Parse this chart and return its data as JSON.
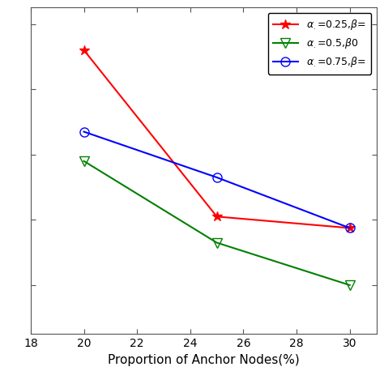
{
  "series": [
    {
      "label": "α.=0.25,β=",
      "color": "red",
      "marker": "*",
      "marker_filled": true,
      "x": [
        20,
        25,
        30
      ],
      "y": [
        0.92,
        0.41,
        0.375
      ]
    },
    {
      "label": "α.=0.5,β0",
      "color": "green",
      "marker": "v",
      "marker_filled": false,
      "x": [
        20,
        25,
        30
      ],
      "y": [
        0.58,
        0.33,
        0.2
      ]
    },
    {
      "label": "α.=0.75,β=",
      "color": "blue",
      "marker": "o",
      "marker_filled": false,
      "x": [
        20,
        25,
        30
      ],
      "y": [
        0.67,
        0.53,
        0.375
      ]
    }
  ],
  "xlabel": "Proportion of Anchor Nodes(%)",
  "xlim": [
    18.0,
    31.0
  ],
  "ylim": [
    0.05,
    1.05
  ],
  "xticks": [
    18,
    20,
    22,
    24,
    26,
    28,
    30
  ],
  "background_color": "#ffffff",
  "figsize": [
    4.74,
    4.74
  ],
  "dpi": 100
}
